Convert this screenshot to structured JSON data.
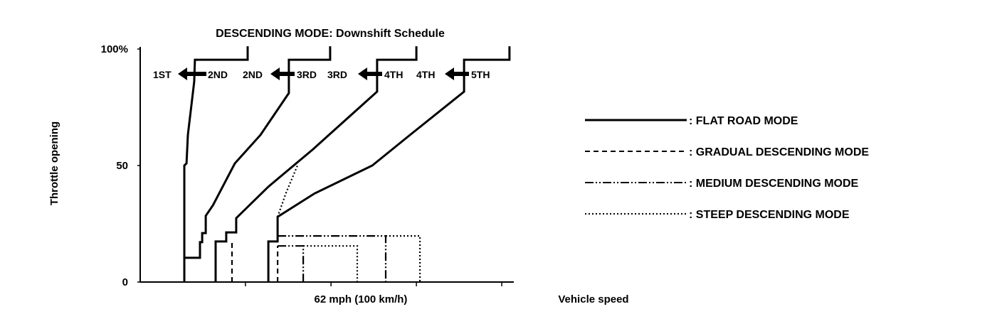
{
  "chart_data": {
    "type": "line",
    "title": "DESCENDING MODE: Downshift Schedule",
    "xlabel": "Vehicle speed",
    "x_marker_label": "62 mph (100 km/h)",
    "ylabel": "Throttle opening",
    "y_ticks": [
      "0",
      "50",
      "100%"
    ],
    "y_tick_values": [
      0,
      50,
      100
    ],
    "x_tick_values": [
      47.7,
      86.5,
      125.2,
      163.9
    ],
    "xlim": [
      0,
      169
    ],
    "ylim": [
      0,
      100
    ],
    "grid": false,
    "legend_position": "right",
    "shift_labels": [
      {
        "low": "1ST",
        "high": "2ND"
      },
      {
        "low": "2ND",
        "high": "3RD"
      },
      {
        "low": "3RD",
        "high": "4TH"
      },
      {
        "low": "4TH",
        "high": "5TH"
      }
    ],
    "series": [
      {
        "name": ": FLAT ROAD MODE",
        "style": "solid",
        "lines": [
          [
            [
              48.7,
              101.2
            ],
            [
              48.7,
              95.4
            ],
            [
              24.8,
              95.4
            ],
            [
              24.5,
              86
            ],
            [
              21.6,
              63.1
            ],
            [
              21,
              50.9
            ],
            [
              20,
              50
            ],
            [
              20,
              0
            ]
          ],
          [
            [
              20,
              10.4
            ],
            [
              27.1,
              10.4
            ],
            [
              27.1,
              17.1
            ],
            [
              28.1,
              17.1
            ],
            [
              28.1,
              21
            ],
            [
              29.7,
              21
            ],
            [
              29.7,
              28.4
            ],
            [
              33,
              33
            ],
            [
              42.9,
              50.9
            ],
            [
              54.5,
              63.1
            ],
            [
              67.4,
              81.1
            ],
            [
              67.4,
              95.4
            ],
            [
              86.1,
              95.4
            ],
            [
              86.1,
              101.2
            ]
          ],
          [
            [
              34.2,
              0
            ],
            [
              34.2,
              17.4
            ],
            [
              39,
              17.4
            ],
            [
              39,
              21.3
            ],
            [
              43.5,
              21.3
            ],
            [
              43.5,
              27.4
            ],
            [
              58.1,
              40.9
            ],
            [
              78.4,
              57
            ],
            [
              85.5,
              63.1
            ],
            [
              107.4,
              81.7
            ],
            [
              107.4,
              95.4
            ],
            [
              125.2,
              95.4
            ],
            [
              125.2,
              101.2
            ]
          ],
          [
            [
              58.1,
              0
            ],
            [
              58.1,
              17.4
            ],
            [
              62.3,
              17.4
            ],
            [
              62.3,
              28
            ],
            [
              79,
              38
            ],
            [
              105.2,
              50
            ],
            [
              122.3,
              63.1
            ],
            [
              146.8,
              81.7
            ],
            [
              146.8,
              95.4
            ],
            [
              167.4,
              95.4
            ],
            [
              167.4,
              101.2
            ]
          ]
        ]
      },
      {
        "name": ": GRADUAL DESCENDING MODE",
        "style": "dashed",
        "lines": [
          [
            [
              41.6,
              0
            ],
            [
              41.6,
              18
            ]
          ],
          [
            [
              62.3,
              0
            ],
            [
              62.3,
              15.5
            ]
          ]
        ]
      },
      {
        "name": ": MEDIUM DESCENDING MODE",
        "style": "dash-dot-dot",
        "lines": [
          [
            [
              62.3,
              19.8
            ],
            [
              111.3,
              19.8
            ],
            [
              111.3,
              0
            ]
          ],
          [
            [
              62.3,
              15.5
            ],
            [
              73.9,
              15.5
            ],
            [
              73.9,
              0
            ]
          ]
        ]
      },
      {
        "name": ": STEEP DESCENDING MODE",
        "style": "dotted",
        "lines": [
          [
            [
              62.3,
              28
            ],
            [
              66,
              38
            ],
            [
              71.3,
              50
            ]
          ],
          [
            [
              111.3,
              19.8
            ],
            [
              126.8,
              19.8
            ],
            [
              126.8,
              0
            ]
          ],
          [
            [
              73.9,
              15.5
            ],
            [
              98.4,
              15.5
            ],
            [
              98.4,
              0
            ]
          ]
        ]
      }
    ]
  }
}
